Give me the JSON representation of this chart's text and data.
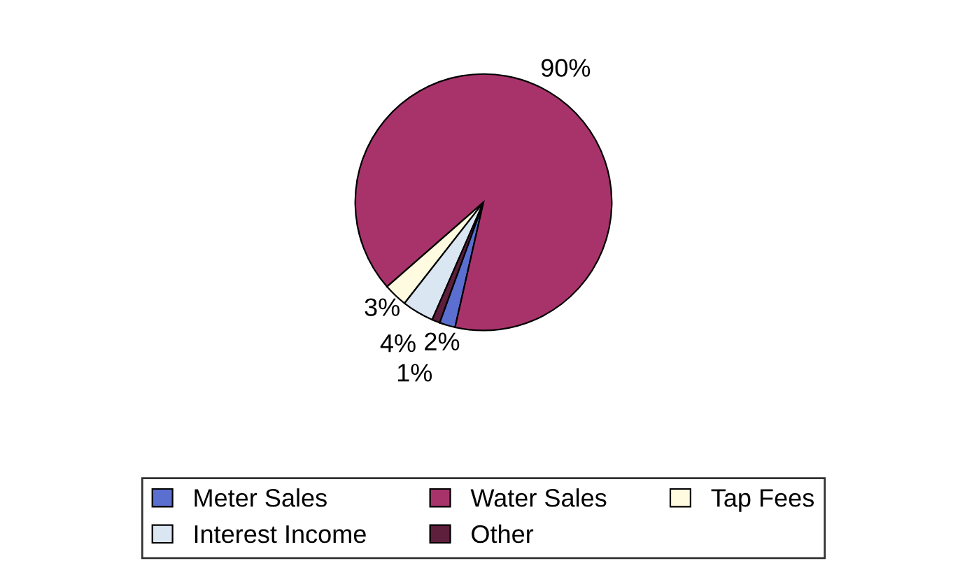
{
  "chart_data": {
    "type": "pie",
    "categories": [
      "Meter Sales",
      "Water Sales",
      "Tap Fees",
      "Interest Income",
      "Other"
    ],
    "values": [
      2,
      90,
      3,
      4,
      1
    ],
    "value_labels": [
      "2%",
      "90%",
      "3%",
      "4%",
      "1%"
    ],
    "colors": [
      "#5b6fd0",
      "#a8336b",
      "#fffbe0",
      "#dbe6f3",
      "#5e1f3c"
    ],
    "legend": "bottom"
  }
}
